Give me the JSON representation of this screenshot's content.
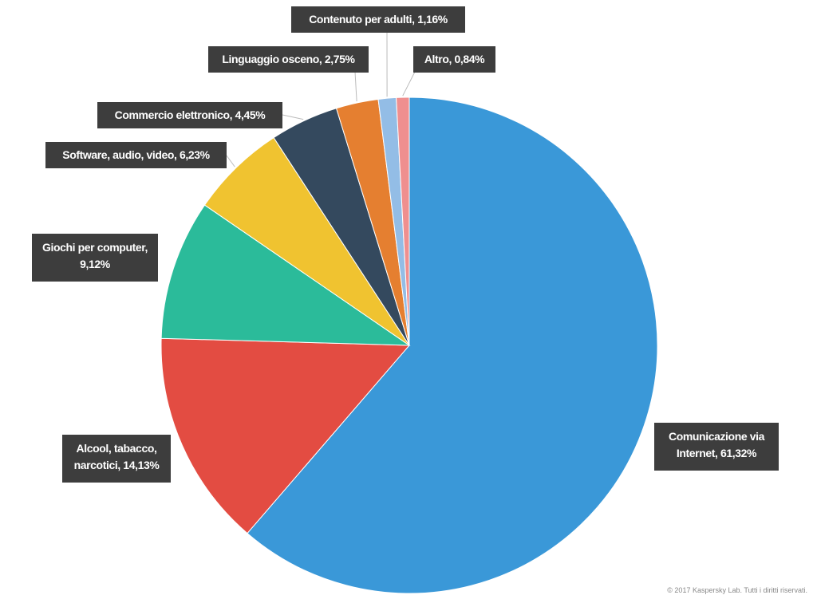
{
  "chart_data": {
    "type": "pie",
    "value_labels": [
      "Comunicazione via Internet, 61,32%",
      "Alcool, tabacco, narcotici, 14,13%",
      "Giochi per computer, 9,12%",
      "Software, audio, video, 6,23%",
      "Commercio elettronico, 4,45%",
      "Linguaggio osceno, 2,75%",
      "Contenuto per adulti, 1,16%",
      "Altro, 0,84%"
    ],
    "values": [
      61.32,
      14.13,
      9.12,
      6.23,
      4.45,
      2.75,
      1.16,
      0.84
    ],
    "colors": [
      "#3a98d8",
      "#e34c42",
      "#2bbb9a",
      "#f0c330",
      "#34495e",
      "#e57f30",
      "#93bde6",
      "#ef8f8f"
    ],
    "footnote": "© 2017 Kaspersky Lab. Tutti i diritti riservati."
  }
}
